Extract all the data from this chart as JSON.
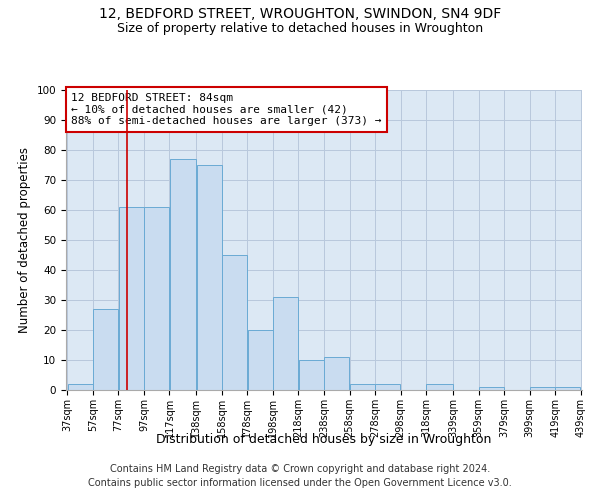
{
  "title": "12, BEDFORD STREET, WROUGHTON, SWINDON, SN4 9DF",
  "subtitle": "Size of property relative to detached houses in Wroughton",
  "xlabel": "Distribution of detached houses by size in Wroughton",
  "ylabel": "Number of detached properties",
  "bin_edges": [
    37,
    57,
    77,
    97,
    117,
    138,
    158,
    178,
    198,
    218,
    238,
    258,
    278,
    298,
    318,
    339,
    359,
    379,
    399,
    419,
    439
  ],
  "bar_heights": [
    2,
    27,
    61,
    61,
    77,
    75,
    45,
    20,
    31,
    10,
    11,
    2,
    2,
    0,
    2,
    0,
    1,
    0,
    1,
    1
  ],
  "tick_labels": [
    "37sqm",
    "57sqm",
    "77sqm",
    "97sqm",
    "117sqm",
    "138sqm",
    "158sqm",
    "178sqm",
    "198sqm",
    "218sqm",
    "238sqm",
    "258sqm",
    "278sqm",
    "298sqm",
    "318sqm",
    "339sqm",
    "359sqm",
    "379sqm",
    "399sqm",
    "419sqm",
    "439sqm"
  ],
  "bar_color": "#c9dcf0",
  "bar_edge_color": "#6aaad4",
  "property_line_x": 84,
  "property_line_color": "#cc0000",
  "annotation_text": "12 BEDFORD STREET: 84sqm\n← 10% of detached houses are smaller (42)\n88% of semi-detached houses are larger (373) →",
  "annotation_box_facecolor": "#ffffff",
  "annotation_box_edgecolor": "#cc0000",
  "ylim": [
    0,
    100
  ],
  "yticks": [
    0,
    10,
    20,
    30,
    40,
    50,
    60,
    70,
    80,
    90,
    100
  ],
  "grid_color": "#b8c8dc",
  "background_color": "#dce8f4",
  "footer_text": "Contains HM Land Registry data © Crown copyright and database right 2024.\nContains public sector information licensed under the Open Government Licence v3.0.",
  "title_fontsize": 10,
  "subtitle_fontsize": 9,
  "xlabel_fontsize": 9,
  "ylabel_fontsize": 8.5,
  "tick_fontsize": 7,
  "annotation_fontsize": 8,
  "footer_fontsize": 7
}
